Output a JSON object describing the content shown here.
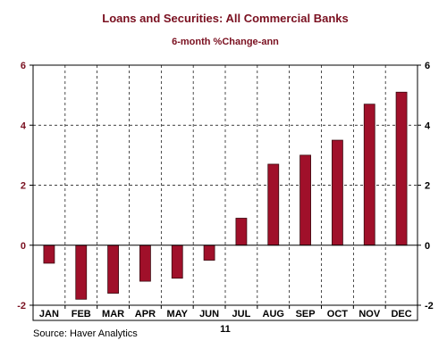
{
  "chart_data": {
    "type": "bar",
    "title": "Loans and Securities: All Commercial Banks",
    "subtitle": "6-month %Change-ann",
    "categories": [
      "JAN",
      "FEB",
      "MAR",
      "APR",
      "MAY",
      "JUN",
      "JUL",
      "AUG",
      "SEP",
      "OCT",
      "NOV",
      "DEC"
    ],
    "values": [
      -0.6,
      -1.8,
      -1.6,
      -1.2,
      -1.1,
      -0.5,
      0.9,
      2.7,
      3.0,
      3.5,
      4.7,
      5.1
    ],
    "ylim": [
      -2,
      6
    ],
    "yticks": [
      -2,
      0,
      2,
      4,
      6
    ],
    "year_label": "11",
    "source": "Source: Haver Analytics",
    "grid": true,
    "colors": {
      "bar": "#a0102a",
      "bar_stroke": "#3a0a10",
      "title": "#7a1020",
      "tick_labels": "#7a1020"
    }
  }
}
